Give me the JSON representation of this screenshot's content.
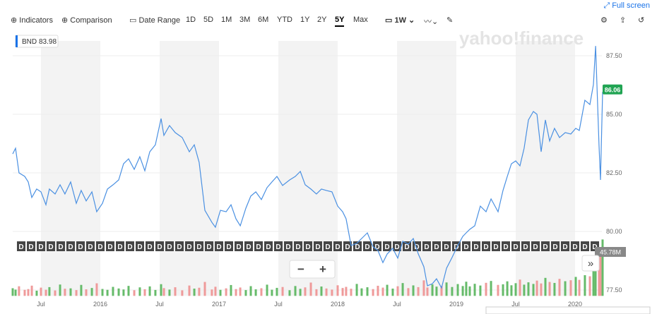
{
  "toolbar": {
    "indicators": "Indicators",
    "comparison": "Comparison",
    "date_range": "Date Range",
    "ranges": [
      "1D",
      "5D",
      "1M",
      "3M",
      "6M",
      "YTD",
      "1Y",
      "2Y",
      "5Y",
      "Max"
    ],
    "interval": "1W",
    "full_screen": "Full screen"
  },
  "chart_data": {
    "type": "line",
    "hover_value": 83.98,
    "current_price": 86.06,
    "watermark": "yahoo!finance",
    "dividend_marker": "D",
    "zoom_out": "−",
    "zoom_in": "+",
    "scroll": "»",
    "x": [
      2015.262,
      2015.286,
      2015.315,
      2015.363,
      2015.393,
      2015.423,
      2015.464,
      2015.5,
      2015.542,
      2015.571,
      2015.619,
      2015.661,
      2015.702,
      2015.75,
      2015.798,
      2015.839,
      2015.881,
      2015.929,
      2015.97,
      2016.018,
      2016.06,
      2016.107,
      2016.155,
      2016.196,
      2016.238,
      2016.286,
      2016.333,
      2016.375,
      2016.417,
      2016.464,
      2016.512,
      2016.536,
      2016.583,
      2016.631,
      2016.69,
      2016.75,
      2016.792,
      2016.833,
      2016.881,
      2016.94,
      2016.97,
      2017.012,
      2017.06,
      2017.101,
      2017.143,
      2017.179,
      2017.226,
      2017.268,
      2017.31,
      2017.357,
      2017.405,
      2017.446,
      2017.488,
      2017.536,
      2017.595,
      2017.643,
      2017.685,
      2017.726,
      2017.774,
      2017.821,
      2017.863,
      2017.905,
      2017.952,
      2018,
      2018.042,
      2018.071,
      2018.113,
      2018.161,
      2018.202,
      2018.25,
      2018.298,
      2018.339,
      2018.381,
      2018.417,
      2018.464,
      2018.506,
      2018.548,
      2018.595,
      2018.637,
      2018.679,
      2018.726,
      2018.756,
      2018.798,
      2018.833,
      2018.875,
      2018.917,
      2018.964,
      2019.012,
      2019.054,
      2019.083,
      2019.113,
      2019.155,
      2019.202,
      2019.25,
      2019.292,
      2019.351,
      2019.393,
      2019.429,
      2019.464,
      2019.5,
      2019.536,
      2019.571,
      2019.607,
      2019.649,
      2019.679,
      2019.714,
      2019.75,
      2019.786,
      2019.827,
      2019.869,
      2019.917,
      2019.964,
      2020.006,
      2020.036,
      2020.083,
      2020.125,
      2020.155,
      2020.173,
      2020.202,
      2020.214,
      2020.232
    ],
    "series": [
      {
        "name": "BND",
        "color": "#4a90e2",
        "values": [
          83.31,
          83.55,
          82.5,
          82.35,
          82.11,
          81.45,
          81.81,
          81.69,
          81.14,
          81.81,
          81.6,
          81.99,
          81.6,
          82.11,
          81.2,
          81.75,
          81.3,
          81.69,
          80.84,
          81.2,
          81.81,
          81.99,
          82.2,
          82.89,
          83.1,
          82.65,
          83.19,
          82.59,
          83.4,
          83.7,
          84.82,
          84.1,
          84.52,
          84.22,
          84.01,
          83.4,
          83.7,
          82.95,
          80.9,
          80.39,
          80.18,
          80.9,
          80.84,
          81.14,
          80.54,
          80.24,
          80.99,
          81.51,
          81.69,
          81.36,
          81.87,
          82.11,
          82.35,
          81.96,
          82.2,
          82.35,
          82.56,
          81.99,
          81.81,
          81.6,
          81.81,
          81.75,
          81.69,
          81.08,
          80.84,
          80.54,
          79.4,
          79.49,
          79.7,
          79.94,
          79.34,
          79.19,
          78.67,
          79.04,
          79.28,
          78.86,
          79.58,
          79.46,
          79.7,
          79.04,
          78.49,
          77.68,
          77.77,
          77.98,
          77.59,
          78.43,
          78.89,
          79.4,
          79.79,
          79.94,
          80.09,
          80.24,
          81.08,
          80.84,
          81.39,
          80.84,
          81.75,
          82.35,
          82.89,
          83.01,
          82.8,
          83.55,
          84.76,
          85.12,
          85,
          83.4,
          84.76,
          83.86,
          84.4,
          84.01,
          84.22,
          84.16,
          84.4,
          84.31,
          85.6,
          85.42,
          86.27,
          87.92,
          83.7,
          82.2,
          85.96
        ]
      }
    ],
    "volume": {
      "values": [
        6.2,
        5.1,
        7.8,
        4.9,
        5.5,
        8.3,
        4.2,
        6.7,
        5.0,
        7.1,
        4.4,
        9.2,
        5.8,
        6.1,
        4.7,
        8.9,
        5.3,
        6.4,
        10.2,
        5.6,
        4.9,
        7.3,
        6.0,
        5.2,
        8.1,
        4.6,
        6.9,
        5.4,
        7.7,
        4.8,
        9.5,
        6.3,
        5.1,
        7.0,
        4.5,
        8.4,
        5.9,
        6.6,
        11.3,
        5.2,
        7.4,
        4.9,
        6.1,
        8.8,
        5.5,
        6.8,
        4.7,
        7.9,
        5.3,
        6.2,
        9.1,
        5.0,
        6.5,
        7.2,
        4.6,
        8.0,
        5.7,
        6.9,
        10.8,
        5.4,
        7.6,
        6.0,
        5.1,
        8.6,
        6.4,
        7.3,
        5.8,
        9.7,
        6.1,
        7.0,
        5.5,
        8.2,
        6.7,
        9.0,
        5.9,
        7.8,
        10.4,
        6.3,
        8.5,
        7.1,
        12.6,
        6.8,
        9.3,
        7.5,
        8.1,
        10.9,
        7.2,
        9.6,
        8.0,
        11.5,
        7.7,
        9.8,
        8.4,
        10.6,
        12.1,
        8.9,
        9.4,
        11.8,
        8.6,
        10.3,
        13.2,
        9.1,
        11.0,
        9.7,
        12.4,
        10.1,
        14.6,
        11.3,
        10.5,
        13.8,
        11.9,
        12.7,
        15.4,
        13.0,
        16.8,
        15.9,
        22.5,
        24.1,
        31.6,
        38.9,
        45.78
      ],
      "value_label": "45.78M",
      "up_color": "#66bb6a",
      "down_color": "#ef9a9a",
      "ylim": [
        0,
        55
      ]
    },
    "xlim": [
      2015.262,
      2020.25
    ],
    "ylim": [
      77.25,
      88.5
    ],
    "xticks": [
      {
        "value": 2015.5,
        "label": "Jul"
      },
      2016,
      {
        "value": 2016.5,
        "label": "Jul"
      },
      2017,
      {
        "value": 2017.5,
        "label": "Jul"
      },
      2018,
      {
        "value": 2018.5,
        "label": "Jul"
      },
      2019,
      {
        "value": 2019.5,
        "label": "Jul"
      },
      2020
    ],
    "yticks": [
      {
        "value": 87.5,
        "label": "87.50"
      },
      {
        "value": 85,
        "label": "85.00"
      },
      {
        "value": 82.5,
        "label": "82.50"
      },
      {
        "value": 80,
        "label": "80.00"
      },
      {
        "value": 77.5,
        "label": "77.50"
      }
    ],
    "grid": true,
    "shaded_bands": true
  }
}
